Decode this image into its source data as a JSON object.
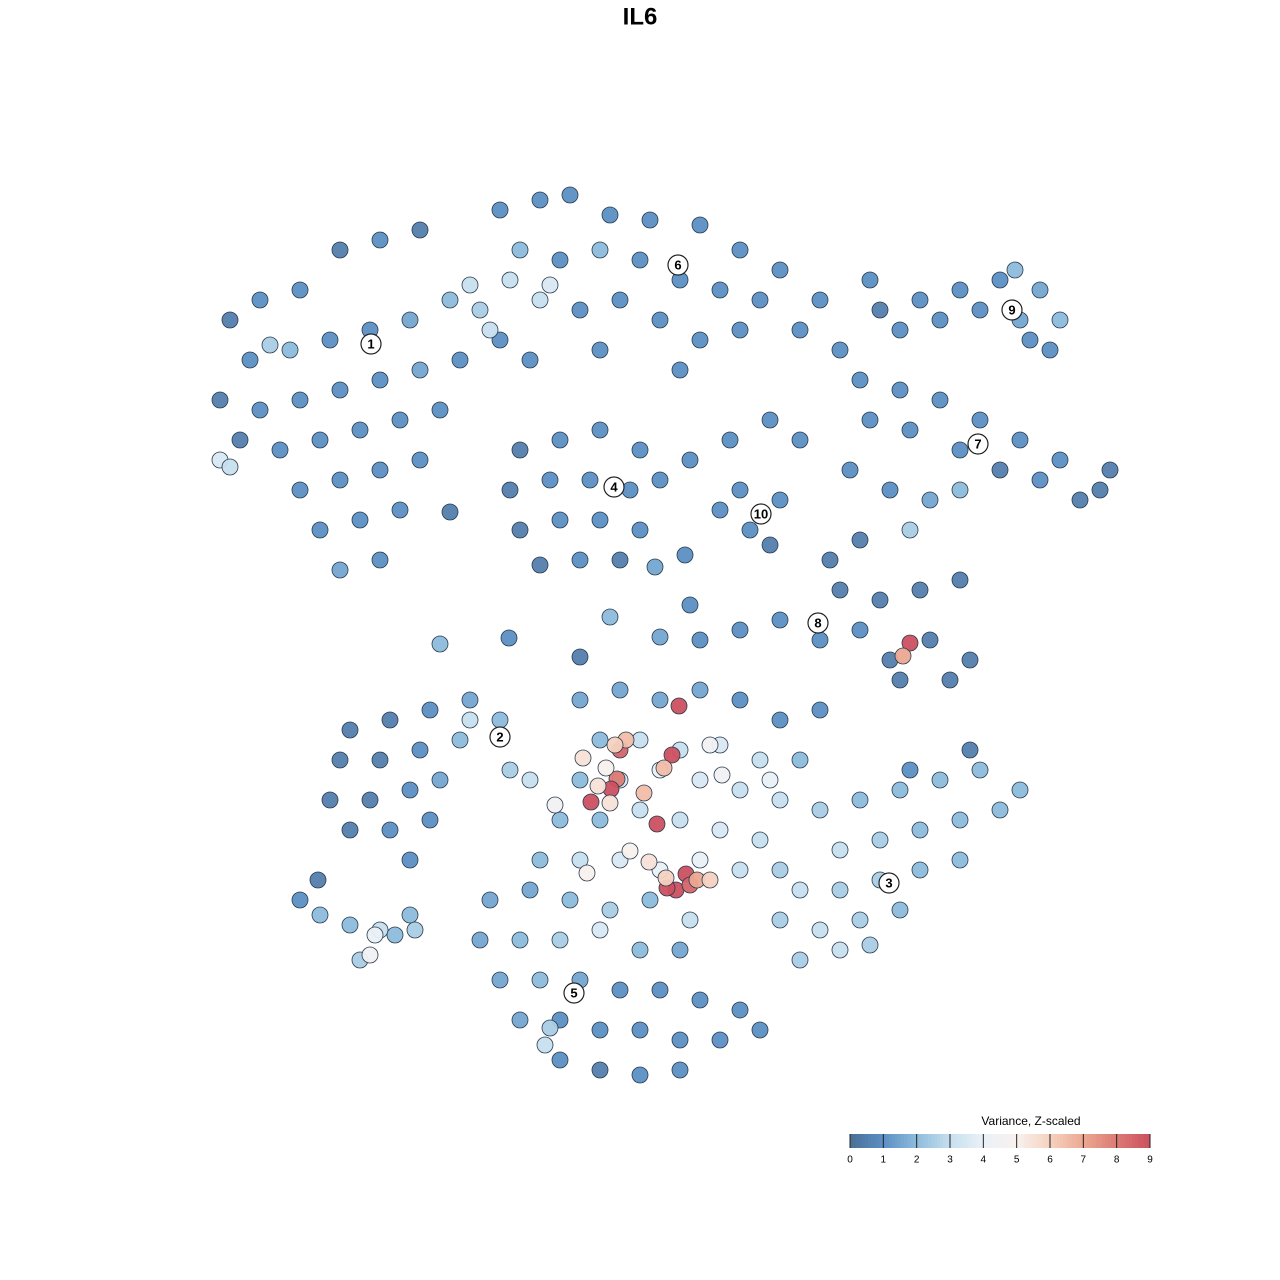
{
  "chart_data": {
    "type": "scatter",
    "title": "IL6",
    "xlim": [
      0,
      1280
    ],
    "ylim": [
      1280,
      0
    ],
    "points": {
      "x": [
        230,
        260,
        300,
        340,
        380,
        420,
        250,
        290,
        330,
        370,
        410,
        450,
        220,
        260,
        300,
        340,
        380,
        420,
        460,
        500,
        240,
        280,
        320,
        360,
        400,
        440,
        300,
        340,
        380,
        420,
        320,
        360,
        400,
        340,
        380,
        270,
        220,
        230,
        470,
        490,
        500,
        540,
        570,
        610,
        650,
        700,
        740,
        780,
        820,
        520,
        560,
        600,
        640,
        680,
        720,
        760,
        800,
        510,
        550,
        540,
        580,
        620,
        660,
        700,
        740,
        840,
        600,
        680,
        530,
        480,
        520,
        560,
        600,
        640,
        510,
        550,
        590,
        630,
        660,
        520,
        560,
        600,
        640,
        540,
        580,
        620,
        690,
        730,
        770,
        800,
        740,
        780,
        750,
        770,
        720,
        880,
        920,
        960,
        1000,
        1040,
        1060,
        900,
        940,
        980,
        1020,
        1050,
        1030,
        870,
        1015,
        860,
        900,
        940,
        980,
        1020,
        1060,
        1100,
        870,
        910,
        960,
        1000,
        1040,
        1080,
        850,
        890,
        930,
        910,
        960,
        1110,
        830,
        860,
        840,
        880,
        920,
        960,
        780,
        820,
        860,
        890,
        930,
        970,
        900,
        950,
        910,
        903,
        740,
        700,
        350,
        390,
        430,
        470,
        500,
        340,
        380,
        420,
        460,
        330,
        370,
        410,
        440,
        350,
        390,
        430,
        410,
        510,
        530,
        470,
        580,
        620,
        660,
        700,
        740,
        780,
        820,
        600,
        640,
        680,
        720,
        760,
        800,
        580,
        620,
        660,
        700,
        740,
        780,
        560,
        600,
        640,
        680,
        720,
        760,
        540,
        580,
        620,
        660,
        700,
        740,
        780,
        679,
        620,
        626,
        615,
        672,
        617,
        611,
        591,
        598,
        610,
        644,
        657,
        664,
        649,
        630,
        686,
        676,
        667,
        690,
        697,
        666,
        710,
        587,
        583,
        606,
        555,
        722,
        710,
        770,
        820,
        860,
        900,
        940,
        980,
        1020,
        840,
        880,
        920,
        960,
        1000,
        800,
        840,
        880,
        920,
        960,
        780,
        820,
        860,
        900,
        800,
        840,
        870,
        970,
        910,
        490,
        530,
        570,
        610,
        650,
        690,
        480,
        520,
        560,
        600,
        640,
        680,
        500,
        540,
        580,
        620,
        660,
        700,
        740,
        520,
        560,
        600,
        640,
        680,
        720,
        760,
        560,
        600,
        640,
        680,
        545,
        550,
        300,
        320,
        350,
        380,
        410,
        360,
        375,
        370,
        395,
        415,
        318,
        440,
        509,
        580,
        610,
        660,
        690,
        450,
        685,
        655
      ],
      "y": [
        320,
        300,
        290,
        250,
        240,
        230,
        360,
        350,
        340,
        330,
        320,
        300,
        400,
        410,
        400,
        390,
        380,
        370,
        360,
        340,
        440,
        450,
        440,
        430,
        420,
        410,
        490,
        480,
        470,
        460,
        530,
        520,
        510,
        570,
        560,
        345,
        460,
        467,
        285,
        330,
        210,
        200,
        195,
        215,
        220,
        225,
        250,
        270,
        300,
        250,
        260,
        250,
        260,
        280,
        290,
        300,
        330,
        280,
        285,
        300,
        310,
        300,
        320,
        340,
        330,
        350,
        350,
        370,
        360,
        310,
        450,
        440,
        430,
        450,
        490,
        480,
        480,
        490,
        480,
        530,
        520,
        520,
        530,
        565,
        560,
        560,
        460,
        440,
        420,
        440,
        490,
        500,
        530,
        545,
        510,
        310,
        300,
        290,
        280,
        290,
        320,
        330,
        320,
        310,
        320,
        350,
        340,
        280,
        270,
        380,
        390,
        400,
        420,
        440,
        460,
        490,
        420,
        430,
        450,
        470,
        480,
        500,
        470,
        490,
        500,
        530,
        490,
        470,
        560,
        540,
        590,
        600,
        590,
        580,
        620,
        640,
        630,
        660,
        640,
        660,
        680,
        680,
        643,
        656,
        630,
        640,
        730,
        720,
        710,
        700,
        720,
        760,
        760,
        750,
        740,
        800,
        800,
        790,
        780,
        830,
        830,
        820,
        860,
        770,
        780,
        720,
        700,
        690,
        700,
        690,
        700,
        720,
        710,
        740,
        740,
        750,
        745,
        760,
        760,
        780,
        780,
        770,
        780,
        790,
        800,
        820,
        820,
        810,
        820,
        830,
        840,
        860,
        860,
        860,
        870,
        860,
        870,
        870,
        706,
        750,
        740,
        745,
        755,
        779,
        789,
        802,
        786,
        803,
        793,
        824,
        768,
        862,
        851,
        874,
        890,
        888,
        885,
        880,
        878,
        880,
        873,
        758,
        768,
        805,
        775,
        745,
        780,
        810,
        800,
        790,
        780,
        770,
        790,
        850,
        840,
        830,
        820,
        810,
        890,
        890,
        880,
        870,
        860,
        920,
        930,
        920,
        910,
        960,
        950,
        945,
        750,
        770,
        900,
        890,
        900,
        910,
        900,
        920,
        940,
        940,
        940,
        930,
        950,
        950,
        980,
        980,
        980,
        990,
        990,
        1000,
        1010,
        1020,
        1020,
        1030,
        1030,
        1040,
        1040,
        1030,
        1060,
        1070,
        1075,
        1070,
        1045,
        1028,
        900,
        915,
        925,
        930,
        915,
        960,
        935,
        955,
        935,
        930,
        880,
        644,
        638,
        657,
        617,
        637,
        605,
        512,
        555,
        567
      ],
      "values": [
        0.5,
        1,
        1,
        0.5,
        1,
        0.5,
        1,
        2,
        1,
        1,
        1.5,
        2,
        0.5,
        1,
        1,
        1,
        1,
        1.5,
        1,
        1,
        0.5,
        1,
        1,
        1,
        1,
        1,
        1,
        1,
        1,
        1,
        1,
        1,
        1,
        1.5,
        1,
        2.5,
        3.5,
        3,
        3,
        3,
        1,
        1,
        1,
        1,
        1,
        1,
        1,
        1,
        1,
        2,
        1,
        2,
        1,
        1,
        1,
        1,
        1,
        3,
        3.5,
        3,
        1,
        1,
        1,
        1,
        1,
        1,
        1,
        1,
        1,
        2.5,
        0.5,
        1,
        1,
        1,
        0.5,
        1,
        1,
        1,
        1,
        0.5,
        1,
        1,
        1,
        0.5,
        1,
        0.5,
        1,
        1,
        1,
        1,
        1,
        1,
        1,
        0.5,
        1,
        0.5,
        1,
        1,
        1,
        1.5,
        2,
        1,
        1,
        1,
        1.5,
        1,
        1,
        1,
        2,
        1,
        1,
        1,
        1,
        1,
        1,
        0.5,
        1,
        1,
        1,
        0.5,
        1,
        0.5,
        1,
        1,
        1.5,
        2.5,
        2,
        0.5,
        0.5,
        0.5,
        0.5,
        0.5,
        0.5,
        0.5,
        1,
        1,
        1,
        0.5,
        0.5,
        0.5,
        0.5,
        0.5,
        9,
        7,
        1,
        1,
        0.5,
        0.5,
        1,
        1.5,
        2,
        0.5,
        0.5,
        1,
        2,
        0.5,
        0.5,
        1,
        1.5,
        0.5,
        1,
        1,
        1,
        2.5,
        3,
        3,
        1.5,
        1.5,
        1.5,
        1.5,
        1,
        1,
        1,
        2,
        3,
        3,
        3.5,
        3,
        2,
        2,
        3.5,
        4,
        3.5,
        3,
        3,
        2,
        2,
        3,
        3,
        3.5,
        3,
        2,
        3,
        3.5,
        4,
        4,
        3,
        2.5,
        9,
        8.5,
        6.5,
        6,
        9,
        8,
        9,
        9,
        5.5,
        5.5,
        6.5,
        9,
        6.5,
        5.5,
        5,
        9,
        9,
        9,
        8.5,
        7,
        6,
        6,
        5,
        5.5,
        5,
        4.5,
        4.5,
        4.5,
        4,
        2.5,
        2,
        2,
        2,
        2,
        2,
        3,
        2.5,
        2,
        2,
        2,
        3,
        2.5,
        2.5,
        2,
        2,
        2.5,
        3,
        2.5,
        2,
        2.5,
        3,
        2.5,
        0.5,
        1,
        1.5,
        1.5,
        2,
        2.5,
        2,
        3,
        1.5,
        2,
        2.5,
        3.5,
        2,
        1.5,
        1.5,
        2,
        1.5,
        1,
        1,
        1,
        1,
        1.5,
        1,
        1,
        1,
        1,
        1,
        1,
        1,
        0.5,
        1,
        1,
        3,
        2.5,
        1,
        2,
        2,
        3,
        2,
        2.5,
        4,
        4.5,
        2,
        2.5,
        0.5,
        2,
        1,
        0.5,
        2,
        1.5,
        1,
        0.5,
        1,
        1.5
      ]
    },
    "clusters": [
      {
        "label": "1",
        "x": 371,
        "y": 344
      },
      {
        "label": "2",
        "x": 500,
        "y": 737
      },
      {
        "label": "3",
        "x": 889,
        "y": 883
      },
      {
        "label": "4",
        "x": 614,
        "y": 487
      },
      {
        "label": "5",
        "x": 574,
        "y": 993
      },
      {
        "label": "6",
        "x": 678,
        "y": 265
      },
      {
        "label": "7",
        "x": 978,
        "y": 444
      },
      {
        "label": "8",
        "x": 818,
        "y": 623
      },
      {
        "label": "9",
        "x": 1012,
        "y": 310
      },
      {
        "label": "10",
        "x": 761,
        "y": 514
      }
    ],
    "colorbar_title": "Variance, Z-scaled",
    "colorlim": [
      0,
      9
    ],
    "colorticks": [
      0,
      1,
      2,
      3,
      4,
      5,
      6,
      7,
      8,
      9
    ],
    "colorscale": [
      "#4a6f96",
      "#5b8fc4",
      "#8dbcdc",
      "#c7dfee",
      "#eaf1f7",
      "#f8f1ee",
      "#f6d2c0",
      "#eca891",
      "#dc7a73",
      "#cb5060"
    ]
  }
}
